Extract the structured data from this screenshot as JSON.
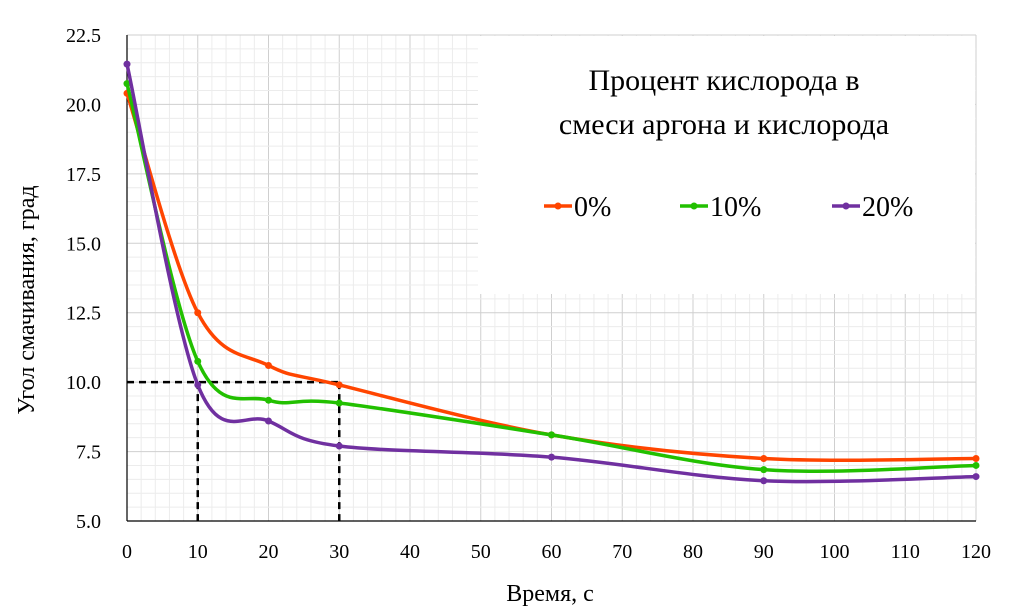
{
  "chart_data": {
    "type": "line",
    "title": "",
    "xlabel": "Время, с",
    "ylabel": "Угол смачивания, град",
    "xlim": [
      0,
      120
    ],
    "ylim": [
      5.0,
      22.5
    ],
    "x_ticks": [
      0,
      10,
      20,
      30,
      40,
      50,
      60,
      70,
      80,
      90,
      100,
      110,
      120
    ],
    "y_ticks": [
      "5.0",
      "7.5",
      "10.0",
      "12.5",
      "15.0",
      "17.5",
      "20.0",
      "22.5"
    ],
    "grid": true,
    "legend": {
      "title": [
        "Процент кислорода в",
        "смеси аргона и кислорода"
      ],
      "placement": "top-right"
    },
    "series": [
      {
        "name": "0%",
        "color": "#ff4500",
        "x": [
          0,
          10,
          20,
          30,
          60,
          90,
          120
        ],
        "y": [
          20.4,
          12.5,
          10.6,
          9.9,
          8.1,
          7.25,
          7.25
        ]
      },
      {
        "name": "10%",
        "color": "#22c000",
        "x": [
          0,
          10,
          20,
          30,
          60,
          90,
          120
        ],
        "y": [
          20.75,
          10.75,
          9.35,
          9.25,
          8.1,
          6.85,
          7.0
        ]
      },
      {
        "name": "20%",
        "color": "#7030a0",
        "x": [
          0,
          10,
          20,
          30,
          60,
          90,
          120
        ],
        "y": [
          21.45,
          9.9,
          8.6,
          7.7,
          7.3,
          6.45,
          6.6
        ]
      }
    ],
    "annotations": {
      "reference_level": 10.0,
      "reference_times": [
        10,
        30
      ],
      "line_style": "dashed"
    }
  }
}
